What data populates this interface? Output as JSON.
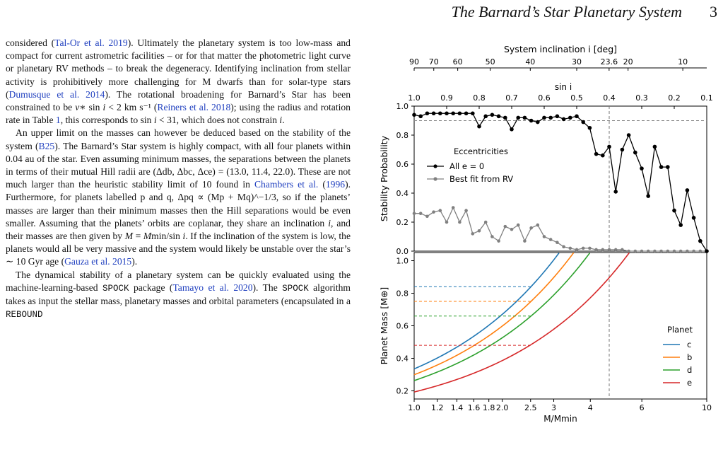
{
  "header": {
    "running_title": "The Barnard’s Star Planetary System",
    "page_number": "3"
  },
  "paragraphs": [
    [
      {
        "t": "considered ("
      },
      {
        "t": "Tal-Or et al. 2019",
        "c": "cite"
      },
      {
        "t": "). Ultimately the planetary system is too low-mass and compact for current astrometric facilities – or for that matter the photometric light curve or planetary RV methods – to break the degeneracy. Identifying inclination from stellar activity is prohibitively more challenging for M dwarfs than for solar-type stars ("
      },
      {
        "t": "Dumusque et al. 2014",
        "c": "cite"
      },
      {
        "t": "). The rotational broadening for Barnard’s Star has been constrained to be "
      },
      {
        "t": "v",
        "c": "math"
      },
      {
        "t": "∗ sin "
      },
      {
        "t": "i",
        "c": "math"
      },
      {
        "t": " < 2 km s⁻¹ ("
      },
      {
        "t": "Reiners et al. 2018",
        "c": "cite"
      },
      {
        "t": "); using the radius and rotation rate in Table "
      },
      {
        "t": "1",
        "c": "cite"
      },
      {
        "t": ", this corresponds to sin "
      },
      {
        "t": "i",
        "c": "math"
      },
      {
        "t": " < 31, which does not constrain "
      },
      {
        "t": "i",
        "c": "math"
      },
      {
        "t": "."
      }
    ],
    [
      {
        "t": "An upper limit on the masses can however be deduced based on the stability of the system ("
      },
      {
        "t": "B25",
        "c": "cite"
      },
      {
        "t": "). The Barnard’s Star system is highly compact, with all four planets within 0.04 au of the star. Even assuming minimum masses, the separations between the planets in terms of their mutual Hill radii are (Δdb, Δbc, Δce) = (13.0, 11.4, 22.0). These are not much larger than the heuristic stability limit of 10 found in "
      },
      {
        "t": "Chambers et al.",
        "c": "cite"
      },
      {
        "t": " ("
      },
      {
        "t": "1996",
        "c": "cite"
      },
      {
        "t": "). Furthermore, for planets labelled p and q, Δpq ∝ (Mp + Mq)^−1/3, so if the planets’ masses are larger than their minimum masses then the Hill separations would be even smaller. Assuming that the planets’ orbits are coplanar, they share an inclination "
      },
      {
        "t": "i",
        "c": "math"
      },
      {
        "t": ", and their masses are then given by "
      },
      {
        "t": "M",
        "c": "math"
      },
      {
        "t": " = "
      },
      {
        "t": "M",
        "c": "math"
      },
      {
        "t": "min/sin "
      },
      {
        "t": "i",
        "c": "math"
      },
      {
        "t": ". If the inclination of the system is low, the planets would all be very massive and the system would likely be unstable over the star’s ∼ 10 Gyr age ("
      },
      {
        "t": "Gauza et al. 2015",
        "c": "cite"
      },
      {
        "t": ")."
      }
    ],
    [
      {
        "t": "The dynamical stability of a planetary system can be quickly evaluated using the machine-learning-based "
      },
      {
        "t": "SPOCK",
        "c": "mono"
      },
      {
        "t": " package ("
      },
      {
        "t": "Tamayo et al. 2020",
        "c": "cite"
      },
      {
        "t": "). The "
      },
      {
        "t": "SPOCK",
        "c": "mono"
      },
      {
        "t": " algorithm takes as input the stellar mass, planetary masses and orbital parameters (encapsulated in a "
      },
      {
        "t": "REBOUND",
        "c": "mono"
      }
    ]
  ],
  "figure": {
    "top_axis_label": "System inclination i [deg]",
    "top_ticks": [
      "90",
      "70",
      "60",
      "50",
      "40",
      "30",
      "23.6",
      "20",
      "10"
    ],
    "sini_label": "sin i",
    "sini_ticks": [
      "1.0",
      "0.9",
      "0.8",
      "0.7",
      "0.6",
      "0.5",
      "0.4",
      "0.3",
      "0.2",
      "0.1"
    ],
    "threshold_ytick": "0.0",
    "upper_panel": {
      "ylabel": "Stability Probability",
      "yticks": [
        "0.0",
        "0.2",
        "0.4",
        "0.6",
        "0.8",
        "1.0"
      ],
      "legend_title": "Eccentricities",
      "legend_items": [
        "All e = 0",
        "Best fit from RV"
      ]
    },
    "lower_panel": {
      "ylabel": "Planet Mass [M⊕]",
      "yticks": [
        "0.2",
        "0.4",
        "0.6",
        "0.8",
        "1.0"
      ],
      "xlabel": "M/Mmin",
      "xticks": [
        "1.0",
        "1.2",
        "1.4",
        "1.6",
        "1.8",
        "2.0",
        "2.5",
        "3",
        "4",
        "6",
        "10"
      ],
      "legend_title": "Planet",
      "legend_items": [
        "c",
        "b",
        "d",
        "e"
      ]
    },
    "colors": {
      "c": "#1f77b4",
      "b": "#ff7f0e",
      "d": "#2ca02c",
      "e": "#d62728",
      "all_e0": "#000000",
      "best_fit": "#808080"
    }
  },
  "chart_data": [
    {
      "type": "line",
      "title": "",
      "xlabel": "sin i",
      "ylabel": "Stability Probability",
      "ylim": [
        0,
        1
      ],
      "x_reversed": true,
      "reference_lines": {
        "horizontal": 0.9,
        "vertical_sin_i": 0.4
      },
      "series": [
        {
          "name": "All e = 0",
          "x": [
            1.0,
            0.98,
            0.96,
            0.94,
            0.92,
            0.9,
            0.88,
            0.86,
            0.84,
            0.82,
            0.8,
            0.78,
            0.76,
            0.74,
            0.72,
            0.7,
            0.68,
            0.66,
            0.64,
            0.62,
            0.6,
            0.58,
            0.56,
            0.54,
            0.52,
            0.5,
            0.48,
            0.46,
            0.44,
            0.42,
            0.4,
            0.38,
            0.36,
            0.34,
            0.32,
            0.3,
            0.28,
            0.26,
            0.24,
            0.22,
            0.2,
            0.18,
            0.16,
            0.14,
            0.12,
            0.1
          ],
          "y": [
            0.94,
            0.93,
            0.95,
            0.95,
            0.95,
            0.95,
            0.95,
            0.95,
            0.95,
            0.95,
            0.86,
            0.93,
            0.94,
            0.93,
            0.92,
            0.84,
            0.92,
            0.92,
            0.9,
            0.89,
            0.92,
            0.92,
            0.93,
            0.91,
            0.92,
            0.93,
            0.89,
            0.85,
            0.67,
            0.66,
            0.72,
            0.41,
            0.7,
            0.8,
            0.68,
            0.57,
            0.38,
            0.72,
            0.58,
            0.58,
            0.28,
            0.18,
            0.42,
            0.23,
            0.07,
            0.0
          ]
        },
        {
          "name": "Best fit from RV",
          "x": [
            1.0,
            0.98,
            0.96,
            0.94,
            0.92,
            0.9,
            0.88,
            0.86,
            0.84,
            0.82,
            0.8,
            0.78,
            0.76,
            0.74,
            0.72,
            0.7,
            0.68,
            0.66,
            0.64,
            0.62,
            0.6,
            0.58,
            0.56,
            0.54,
            0.52,
            0.5,
            0.48,
            0.46,
            0.44,
            0.42,
            0.4,
            0.38,
            0.36,
            0.34,
            0.32,
            0.3,
            0.28,
            0.26,
            0.24,
            0.22,
            0.2,
            0.18,
            0.16,
            0.14,
            0.12,
            0.1
          ],
          "y": [
            0.26,
            0.26,
            0.24,
            0.27,
            0.28,
            0.2,
            0.3,
            0.2,
            0.28,
            0.12,
            0.14,
            0.2,
            0.1,
            0.07,
            0.17,
            0.15,
            0.18,
            0.07,
            0.16,
            0.18,
            0.1,
            0.08,
            0.06,
            0.03,
            0.02,
            0.01,
            0.02,
            0.02,
            0.01,
            0.01,
            0.01,
            0.01,
            0.01,
            0.0,
            0.0,
            0.0,
            0.0,
            0.0,
            0.0,
            0.0,
            0.0,
            0.0,
            0.0,
            0.0,
            0.0,
            0.0
          ]
        }
      ]
    },
    {
      "type": "line",
      "title": "",
      "xlabel": "M/Mmin",
      "ylabel": "Planet Mass [M⊕]",
      "x_scale": "log",
      "xlim": [
        1,
        10
      ],
      "ylim": [
        0.15,
        1.05
      ],
      "reference_lines": {
        "vertical_M_over_Mmin": 2.5
      },
      "legend": "right",
      "series": [
        {
          "name": "c",
          "min_mass": 0.335,
          "stable_limit_mass": 0.84
        },
        {
          "name": "b",
          "min_mass": 0.299,
          "stable_limit_mass": 0.75
        },
        {
          "name": "d",
          "min_mass": 0.263,
          "stable_limit_mass": 0.66
        },
        {
          "name": "e",
          "min_mass": 0.193,
          "stable_limit_mass": 0.48
        }
      ]
    }
  ]
}
